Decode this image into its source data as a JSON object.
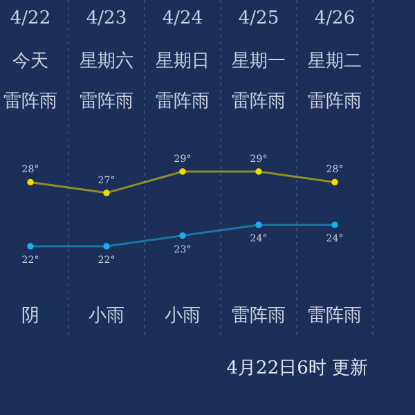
{
  "chart_data": {
    "type": "line",
    "categories": [
      "4/22",
      "4/23",
      "4/24",
      "4/25",
      "4/26"
    ],
    "series": [
      {
        "color": "#f2dc00",
        "values": [
          28,
          27,
          29,
          29,
          28
        ],
        "value_labels": [
          "28°",
          "27°",
          "29°",
          "29°",
          "28°"
        ]
      },
      {
        "color": "#19aef0",
        "values": [
          22,
          22,
          23,
          24,
          24
        ],
        "value_labels": [
          "22°",
          "22°",
          "23°",
          "24°",
          "24°"
        ]
      }
    ],
    "marker": "circle",
    "grid": "x",
    "annotations": [
      "今天",
      "星期六",
      "星期日",
      "星期一",
      "星期二",
      "雷阵雨",
      "雷阵雨",
      "雷阵雨",
      "雷阵雨",
      "雷阵雨",
      "阴",
      "小雨",
      "小雨",
      "雷阵雨",
      "雷阵雨",
      "4月22日6时 更新"
    ]
  }
}
